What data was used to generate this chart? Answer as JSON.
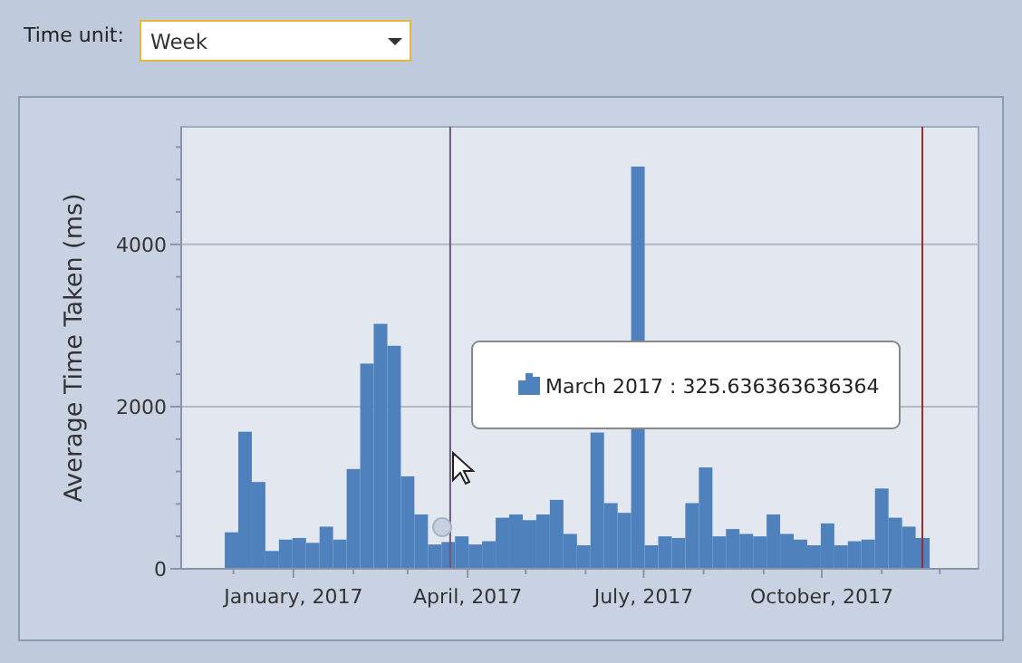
{
  "chart_data": {
    "type": "bar",
    "ylabel": "Average Time Taken (ms)",
    "x": [
      "2016-11-30",
      "2016-12-07",
      "2016-12-14",
      "2016-12-21",
      "2016-12-28",
      "2017-01-04",
      "2017-01-11",
      "2017-01-18",
      "2017-01-25",
      "2017-02-01",
      "2017-02-08",
      "2017-02-15",
      "2017-02-22",
      "2017-03-01",
      "2017-03-08",
      "2017-03-15",
      "2017-03-22",
      "2017-03-29",
      "2017-04-05",
      "2017-04-12",
      "2017-04-19",
      "2017-04-26",
      "2017-05-03",
      "2017-05-10",
      "2017-05-17",
      "2017-05-24",
      "2017-05-31",
      "2017-06-07",
      "2017-06-14",
      "2017-06-21",
      "2017-06-28",
      "2017-07-05",
      "2017-07-12",
      "2017-07-19",
      "2017-07-26",
      "2017-08-02",
      "2017-08-09",
      "2017-08-16",
      "2017-08-23",
      "2017-08-30",
      "2017-09-06",
      "2017-09-13",
      "2017-09-20",
      "2017-09-27",
      "2017-10-04",
      "2017-10-11",
      "2017-10-18",
      "2017-10-25",
      "2017-11-01",
      "2017-11-08",
      "2017-11-15",
      "2017-11-22"
    ],
    "series": [
      {
        "color": "#4f81bd",
        "values": [
          450,
          1690,
          1070,
          220,
          360,
          380,
          320,
          520,
          360,
          1230,
          2530,
          3020,
          2750,
          1140,
          670,
          300,
          330,
          400,
          300,
          340,
          630,
          670,
          600,
          670,
          850,
          430,
          290,
          1680,
          810,
          690,
          4960,
          290,
          400,
          380,
          810,
          1250,
          400,
          490,
          430,
          400,
          670,
          430,
          360,
          290,
          560,
          290,
          340,
          360,
          990,
          630,
          520,
          380
        ]
      }
    ],
    "xlim": [
      "2016-11-04",
      "2017-12-21"
    ],
    "xticks": [
      {
        "value": "2016-12-01",
        "label": null
      },
      {
        "value": "2017-01-01",
        "label": "January, 2017"
      },
      {
        "value": "2017-02-01",
        "label": null
      },
      {
        "value": "2017-03-01",
        "label": null
      },
      {
        "value": "2017-04-01",
        "label": "April, 2017"
      },
      {
        "value": "2017-05-01",
        "label": null
      },
      {
        "value": "2017-06-01",
        "label": null
      },
      {
        "value": "2017-07-01",
        "label": "July, 2017"
      },
      {
        "value": "2017-08-01",
        "label": null
      },
      {
        "value": "2017-09-01",
        "label": null
      },
      {
        "value": "2017-10-01",
        "label": "October, 2017"
      },
      {
        "value": "2017-11-01",
        "label": null
      },
      {
        "value": "2017-12-01",
        "label": null
      }
    ],
    "ylim": [
      0,
      5450
    ],
    "yticks": [
      0,
      {
        "value": 400,
        "label": null
      },
      {
        "value": 800,
        "label": null
      },
      {
        "value": 1200,
        "label": null
      },
      {
        "value": 1600,
        "label": null
      },
      2000,
      {
        "value": 2400,
        "label": null
      },
      {
        "value": 2800,
        "label": null
      },
      {
        "value": 3200,
        "label": null
      },
      {
        "value": 3600,
        "label": null
      },
      4000,
      {
        "value": 4400,
        "label": null
      },
      {
        "value": 4800,
        "label": null
      },
      {
        "value": 5200,
        "label": null
      }
    ],
    "grid": "y",
    "ref_lines": [
      {
        "axis": "x",
        "value": "2017-03-23",
        "color": "#6b5a7a"
      },
      {
        "axis": "x",
        "value": "2017-11-22",
        "color": "#9b2a2a"
      }
    ],
    "annotations": [
      "Time unit:",
      "Week",
      "March 2017 : 325.636363636364"
    ]
  }
}
